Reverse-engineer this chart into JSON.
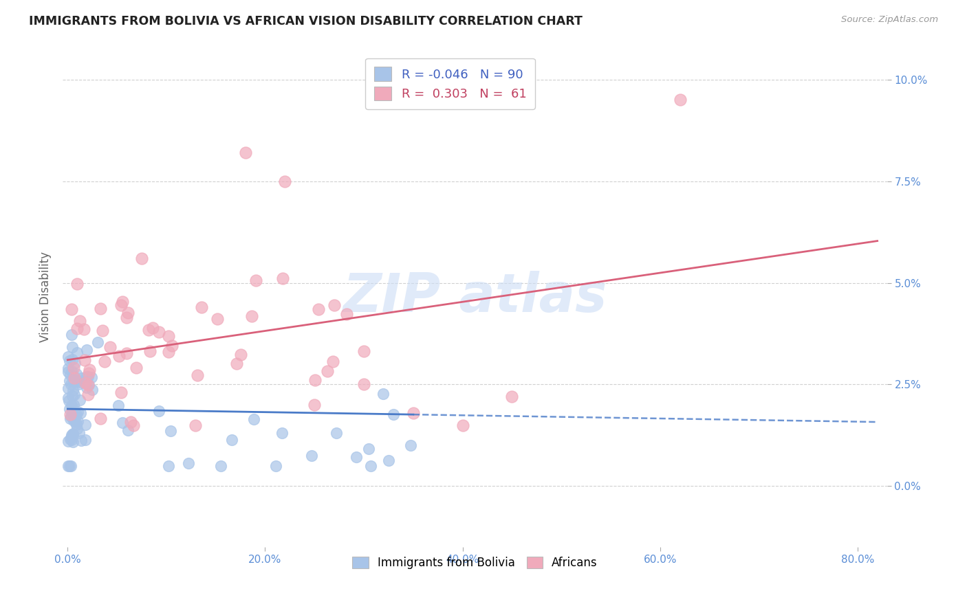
{
  "title": "IMMIGRANTS FROM BOLIVIA VS AFRICAN VISION DISABILITY CORRELATION CHART",
  "source": "Source: ZipAtlas.com",
  "ylabel": "Vision Disability",
  "blue_color": "#a8c4e8",
  "pink_color": "#f0aabb",
  "blue_line_color": "#4a7bc8",
  "pink_line_color": "#d9607a",
  "background_color": "#ffffff",
  "grid_color": "#d0d0d0",
  "title_color": "#222222",
  "axis_tick_color": "#5b8ed6",
  "watermark_color": "#ccddf5",
  "r_blue": -0.046,
  "n_blue": 90,
  "r_pink": 0.303,
  "n_pink": 61,
  "xlim_min": -0.005,
  "xlim_max": 0.83,
  "ylim_min": -0.015,
  "ylim_max": 0.108
}
